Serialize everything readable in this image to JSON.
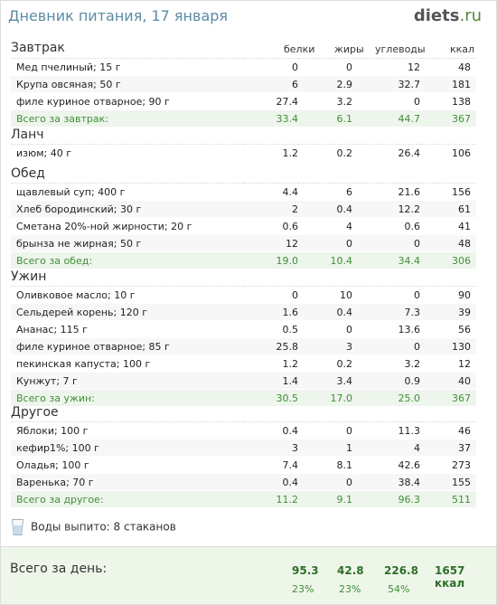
{
  "header": {
    "title": "Дневник питания, 17 января",
    "logo_main": "diets",
    "logo_tld": ".ru"
  },
  "columns": {
    "protein": "белки",
    "fat": "жиры",
    "carbs": "углеводы",
    "kcal": "ккал"
  },
  "meals": [
    {
      "title": "Завтрак",
      "items": [
        {
          "name": "Мед пчелиный; 15 г",
          "p": "0",
          "f": "0",
          "c": "12",
          "k": "48"
        },
        {
          "name": "Крупа овсяная; 50 г",
          "p": "6",
          "f": "2.9",
          "c": "32.7",
          "k": "181"
        },
        {
          "name": "филе куриное отварное; 90 г",
          "p": "27.4",
          "f": "3.2",
          "c": "0",
          "k": "138"
        }
      ],
      "total": {
        "name": "Всего за завтрак:",
        "p": "33.4",
        "f": "6.1",
        "c": "44.7",
        "k": "367"
      }
    },
    {
      "title": "Ланч",
      "items": [
        {
          "name": "изюм; 40 г",
          "p": "1.2",
          "f": "0.2",
          "c": "26.4",
          "k": "106"
        }
      ],
      "total": null
    },
    {
      "title": "Обед",
      "items": [
        {
          "name": "щавлевый суп; 400 г",
          "p": "4.4",
          "f": "6",
          "c": "21.6",
          "k": "156"
        },
        {
          "name": "Хлеб бородинский; 30 г",
          "p": "2",
          "f": "0.4",
          "c": "12.2",
          "k": "61"
        },
        {
          "name": "Сметана 20%-ной жирности; 20 г",
          "p": "0.6",
          "f": "4",
          "c": "0.6",
          "k": "41"
        },
        {
          "name": "брынза не жирная; 50 г",
          "p": "12",
          "f": "0",
          "c": "0",
          "k": "48"
        }
      ],
      "total": {
        "name": "Всего за обед:",
        "p": "19.0",
        "f": "10.4",
        "c": "34.4",
        "k": "306"
      }
    },
    {
      "title": "Ужин",
      "items": [
        {
          "name": "Оливковое масло; 10 г",
          "p": "0",
          "f": "10",
          "c": "0",
          "k": "90"
        },
        {
          "name": "Сельдерей корень; 120 г",
          "p": "1.6",
          "f": "0.4",
          "c": "7.3",
          "k": "39"
        },
        {
          "name": "Ананас; 115 г",
          "p": "0.5",
          "f": "0",
          "c": "13.6",
          "k": "56"
        },
        {
          "name": "филе куриное отварное; 85 г",
          "p": "25.8",
          "f": "3",
          "c": "0",
          "k": "130"
        },
        {
          "name": "пекинская капуста; 100 г",
          "p": "1.2",
          "f": "0.2",
          "c": "3.2",
          "k": "12"
        },
        {
          "name": "Кунжут; 7 г",
          "p": "1.4",
          "f": "3.4",
          "c": "0.9",
          "k": "40"
        }
      ],
      "total": {
        "name": "Всего за ужин:",
        "p": "30.5",
        "f": "17.0",
        "c": "25.0",
        "k": "367"
      }
    },
    {
      "title": "Другое",
      "items": [
        {
          "name": "Яблоки; 100 г",
          "p": "0.4",
          "f": "0",
          "c": "11.3",
          "k": "46"
        },
        {
          "name": "кефир1%; 100 г",
          "p": "3",
          "f": "1",
          "c": "4",
          "k": "37"
        },
        {
          "name": "Оладья; 100 г",
          "p": "7.4",
          "f": "8.1",
          "c": "42.6",
          "k": "273"
        },
        {
          "name": "Варенька; 70 г",
          "p": "0.4",
          "f": "0",
          "c": "38.4",
          "k": "155"
        }
      ],
      "total": {
        "name": "Всего за другое:",
        "p": "11.2",
        "f": "9.1",
        "c": "96.3",
        "k": "511"
      }
    }
  ],
  "water": {
    "text": "Воды выпито: 8 стаканов",
    "icon": "water-glass-icon"
  },
  "day": {
    "label": "Всего за день:",
    "p": "95.3",
    "f": "42.8",
    "c": "226.8",
    "k": "1657 ккал",
    "p_pct": "23%",
    "f_pct": "23%",
    "c_pct": "54%"
  },
  "colors": {
    "title": "#5b8ca3",
    "total": "#3f8f37",
    "day_bg": "#eef6ea"
  }
}
